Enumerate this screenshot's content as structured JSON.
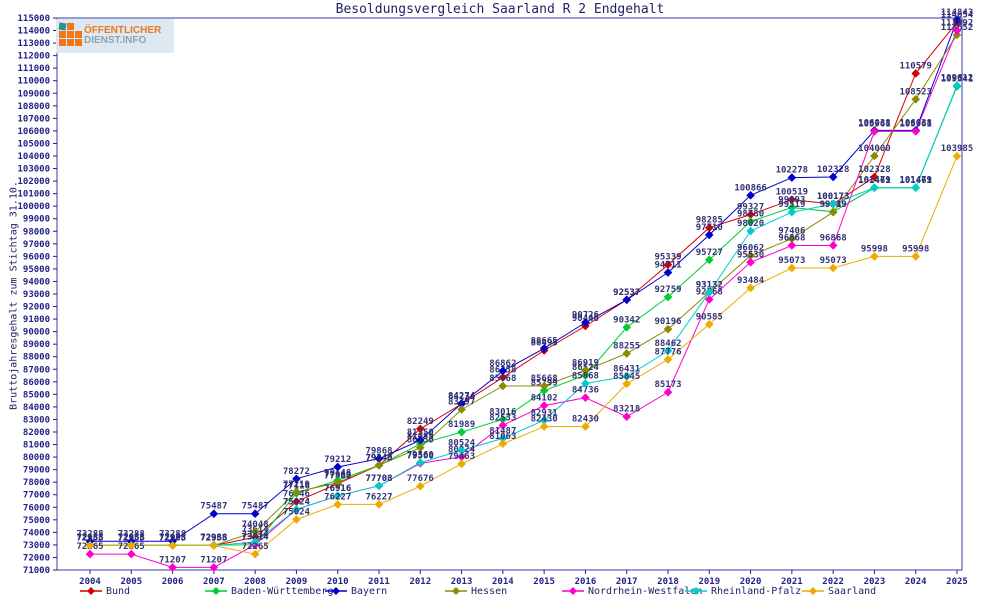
{
  "title": "Besoldungsvergleich Saarland R 2 Endgehalt",
  "y_axis_label": "Bruttojahresgehalt zum Stichtag 31.10.",
  "logo": {
    "line1": "ÖFFENTLICHER",
    "line2": "DIENST.INFO"
  },
  "colors": {
    "axis_border": "#3a3aa8",
    "tick_text": "#222288",
    "point_label_text": "#333377",
    "title_text": "#222266"
  },
  "chart_data": {
    "type": "line",
    "x": [
      2004,
      2005,
      2006,
      2007,
      2008,
      2009,
      2010,
      2011,
      2012,
      2013,
      2014,
      2015,
      2016,
      2017,
      2018,
      2019,
      2020,
      2021,
      2022,
      2023,
      2024,
      2025
    ],
    "ylim": [
      71000,
      115000
    ],
    "ytick_step": 1000,
    "grid": false,
    "legend_position": "bottom",
    "series": [
      {
        "name": "Bund",
        "color": "#d40000",
        "values": [
          72955,
          72955,
          72955,
          72955,
          73614,
          76446,
          77880,
          79345,
          82249,
          84234,
          86358,
          88495,
          90446,
          92537,
          95339,
          98285,
          99327,
          100519,
          100173,
          102328,
          110579,
          114654
        ]
      },
      {
        "name": "Baden-Württemberg",
        "color": "#00cc33",
        "values": [
          72988,
          72988,
          72988,
          72988,
          73014,
          77116,
          78148,
          79340,
          81059,
          81989,
          83016,
          85299,
          86524,
          90342,
          92759,
          95727,
          98780,
          99893,
          99549,
          101461,
          101461,
          109541
        ]
      },
      {
        "name": "Bayern",
        "color": "#0000cc",
        "values": [
          73288,
          73288,
          73288,
          75487,
          75487,
          78272,
          79212,
          79868,
          81350,
          84274,
          86862,
          88665,
          90726,
          92537,
          94711,
          97710,
          100866,
          102278,
          102328,
          106038,
          106038,
          114843
        ]
      },
      {
        "name": "Hessen",
        "color": "#8b8b00",
        "values": [
          72955,
          72955,
          72955,
          72955,
          74048,
          77219,
          77969,
          79345,
          80750,
          83797,
          85668,
          85668,
          86919,
          88255,
          90196,
          93132,
          96062,
          97406,
          99519,
          104000,
          108523,
          113652
        ]
      },
      {
        "name": "Nordrhein-Westfalen",
        "color": "#ff00cc",
        "values": [
          72265,
          72265,
          71207,
          71207,
          73014,
          75824,
          76916,
          77708,
          79500,
          80024,
          82533,
          84102,
          84736,
          83218,
          85173,
          92568,
          95530,
          96868,
          96868,
          105961,
          105961,
          113992
        ]
      },
      {
        "name": "Rheinland-Pfalz",
        "color": "#00cccc",
        "values": [
          72955,
          72955,
          72955,
          72955,
          73234,
          75824,
          76916,
          77708,
          79560,
          80524,
          81487,
          82931,
          85868,
          86431,
          88462,
          93132,
          98020,
          99519,
          100173,
          101479,
          101479,
          109612
        ]
      },
      {
        "name": "Saarland",
        "color": "#eeaa00",
        "values": [
          72955,
          72955,
          72955,
          72955,
          72265,
          75024,
          76227,
          76227,
          77676,
          79463,
          81063,
          82430,
          82430,
          85845,
          87776,
          90585,
          93484,
          95073,
          95073,
          95998,
          95998,
          103985
        ]
      }
    ]
  },
  "legend_x_positions": [
    80,
    205,
    325,
    445,
    562,
    685,
    802
  ]
}
